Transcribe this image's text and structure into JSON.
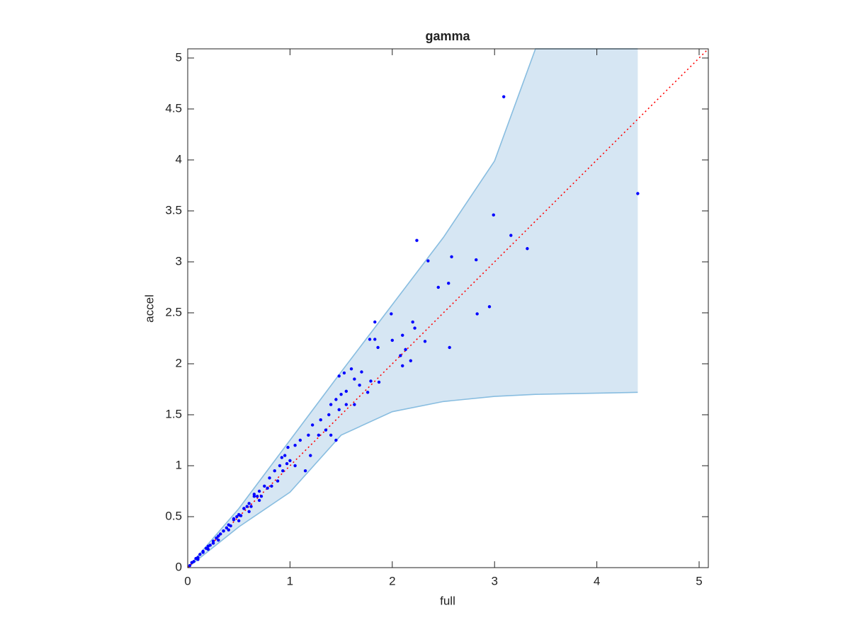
{
  "chart_data": {
    "type": "scatter",
    "title": "gamma",
    "x_label": "full",
    "y_label": "accel",
    "xlim": [
      0,
      5.09
    ],
    "ylim": [
      0,
      5.09
    ],
    "xticks": [
      0,
      1,
      2,
      3,
      4,
      5
    ],
    "yticks": [
      0,
      0.5,
      1,
      1.5,
      2,
      2.5,
      3,
      3.5,
      4,
      4.5,
      5
    ],
    "band": {
      "color": "#d6e6f3",
      "edge_color": "#88bde0",
      "x": [
        0,
        0.5,
        1,
        1.5,
        2,
        2.5,
        3,
        3.4,
        4.4
      ],
      "upper": [
        0,
        0.58,
        1.25,
        1.92,
        2.58,
        3.24,
        3.99,
        5.09,
        5.09
      ],
      "lower": [
        0,
        0.4,
        0.74,
        1.3,
        1.53,
        1.63,
        1.68,
        1.7,
        1.72
      ]
    },
    "reference": {
      "color": "#ff0000",
      "x": [
        0,
        5.09
      ],
      "values": [
        0,
        5.09
      ]
    },
    "points": {
      "color": "#0000ff",
      "x": [
        0.02,
        0.04,
        0.06,
        0.08,
        0.1,
        0.12,
        0.15,
        0.18,
        0.2,
        0.22,
        0.25,
        0.28,
        0.3,
        0.32,
        0.35,
        0.38,
        0.4,
        0.42,
        0.45,
        0.48,
        0.5,
        0.52,
        0.55,
        0.58,
        0.6,
        0.62,
        0.65,
        0.68,
        0.7,
        0.72,
        0.75,
        0.78,
        0.8,
        0.82,
        0.85,
        0.88,
        0.9,
        0.93,
        0.95,
        0.97,
        0.1,
        0.2,
        0.3,
        0.4,
        0.5,
        0.6,
        0.7,
        0.15,
        0.25,
        0.35,
        0.45,
        0.55,
        0.65,
        3.09,
        4.4,
        2.99,
        3.16,
        3.32,
        2.24,
        2.35,
        2.58,
        2.82,
        2.45,
        2.55,
        2.95,
        2.83,
        1.99,
        2.56,
        1.83,
        1.78,
        1.86,
        1.83,
        2.1,
        2.2,
        2.22,
        2.32,
        2.13,
        2.0,
        2.08,
        2.18,
        2.1,
        1.6,
        1.53,
        1.7,
        1.48,
        1.79,
        1.87,
        1.63,
        1.68,
        1.76,
        1.55,
        1.5,
        1.45,
        1.4,
        1.55,
        1.63,
        1.48,
        1.38,
        1.3,
        1.22,
        1.35,
        1.28,
        1.4,
        1.45,
        1.18,
        1.1,
        1.05,
        0.98,
        1.0,
        0.92,
        1.05,
        1.2,
        1.15
      ],
      "values": [
        0.02,
        0.05,
        0.06,
        0.09,
        0.1,
        0.13,
        0.15,
        0.19,
        0.21,
        0.22,
        0.26,
        0.29,
        0.31,
        0.33,
        0.36,
        0.39,
        0.42,
        0.41,
        0.47,
        0.5,
        0.52,
        0.51,
        0.58,
        0.6,
        0.63,
        0.6,
        0.7,
        0.7,
        0.75,
        0.7,
        0.8,
        0.78,
        0.88,
        0.8,
        0.95,
        0.85,
        1.0,
        0.95,
        1.1,
        1.02,
        0.08,
        0.18,
        0.27,
        0.37,
        0.46,
        0.55,
        0.66,
        0.16,
        0.24,
        0.36,
        0.48,
        0.58,
        0.72,
        4.62,
        3.67,
        3.46,
        3.26,
        3.13,
        3.21,
        3.01,
        3.05,
        3.02,
        2.75,
        2.79,
        2.56,
        2.49,
        2.49,
        2.16,
        2.41,
        2.24,
        2.16,
        2.24,
        2.28,
        2.41,
        2.35,
        2.22,
        2.14,
        2.23,
        2.08,
        2.03,
        1.98,
        1.95,
        1.91,
        1.92,
        1.88,
        1.83,
        1.82,
        1.85,
        1.79,
        1.72,
        1.73,
        1.7,
        1.65,
        1.6,
        1.6,
        1.6,
        1.55,
        1.5,
        1.45,
        1.4,
        1.35,
        1.3,
        1.3,
        1.25,
        1.3,
        1.25,
        1.2,
        1.18,
        1.05,
        1.08,
        1.0,
        1.1,
        0.95
      ]
    }
  }
}
